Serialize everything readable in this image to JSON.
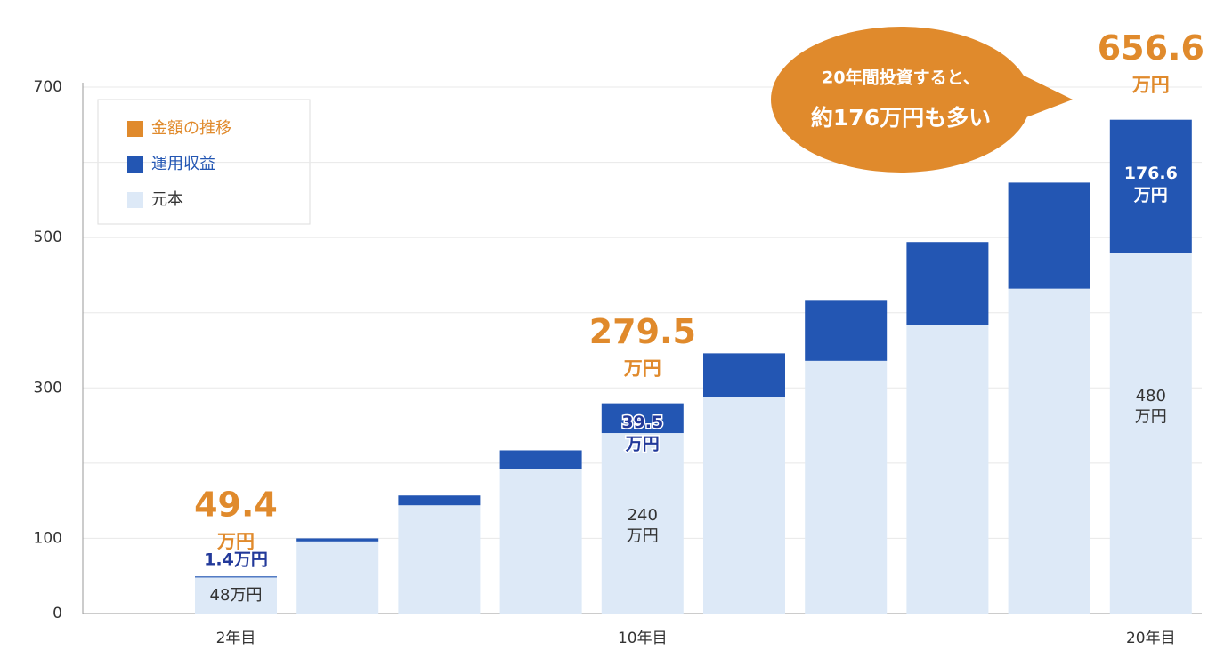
{
  "chart_data": {
    "type": "stacked-bar",
    "categories": [
      "2年目",
      null,
      null,
      null,
      "10年目",
      null,
      null,
      null,
      null,
      "20年目"
    ],
    "series": [
      {
        "name": "元本",
        "color": "#dde9f7",
        "values": [
          48,
          96,
          144,
          192,
          240,
          288,
          336,
          384,
          432,
          480
        ],
        "value_labels": [
          "48万円",
          null,
          null,
          null,
          "240\n万円",
          null,
          null,
          null,
          null,
          "480\n万円"
        ]
      },
      {
        "name": "運用収益",
        "color": "#2356b3",
        "values": [
          1.4,
          4,
          13,
          25,
          39.5,
          58,
          81,
          110,
          141,
          176.6
        ],
        "value_labels": [
          "1.4万円",
          null,
          null,
          null,
          "39.5\n万円",
          null,
          null,
          null,
          null,
          "176.6\n万円"
        ]
      }
    ],
    "totals": {
      "name": "金額の推移",
      "color": "#e08a2c",
      "values": [
        49.4,
        null,
        null,
        null,
        279.5,
        null,
        null,
        null,
        null,
        656.6
      ],
      "unit": "万円"
    },
    "ylim": [
      0,
      700
    ],
    "yticks": [
      0,
      100,
      300,
      500,
      700
    ],
    "grid_yticks": [
      100,
      200,
      300,
      400,
      500,
      600,
      700
    ],
    "annotation": [
      "20年間投資すると、",
      "約176万円も多い"
    ]
  }
}
